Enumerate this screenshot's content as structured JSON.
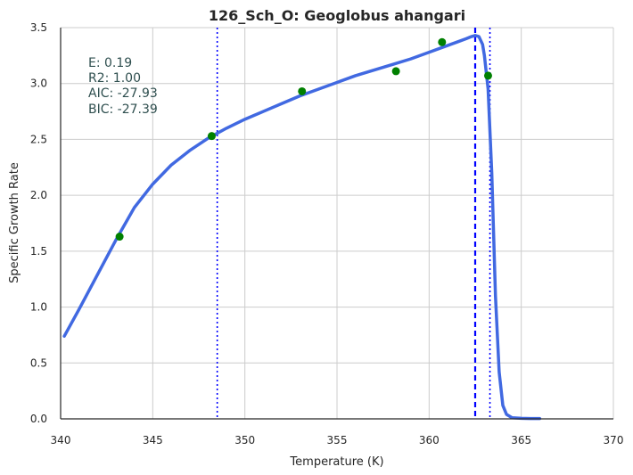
{
  "chart_data": {
    "type": "line",
    "title": "126_Sch_O: Geoglobus ahangari",
    "xlabel": "Temperature (K)",
    "ylabel": "Specific Growth Rate",
    "xlim": [
      340,
      370
    ],
    "ylim": [
      0,
      3.5
    ],
    "x_ticks": [
      340,
      345,
      350,
      355,
      360,
      365,
      370
    ],
    "y_ticks": [
      "0.0",
      "0.5",
      "1.0",
      "1.5",
      "2.0",
      "2.5",
      "3.0",
      "3.5"
    ],
    "grid": true,
    "annotations": [
      "E:  0.19",
      "R2:  1.00",
      "AIC: -27.93",
      "BIC: -27.39"
    ],
    "colors": {
      "fit_line": "#4169e1",
      "observed_points": "#008000",
      "vertical_lines": "#0000ff",
      "grid": "#cccccc",
      "annotation_text": "#2f4f4f"
    },
    "series": [
      {
        "role": "fitted-curve",
        "style": "solid",
        "x": [
          340.2,
          341.0,
          342.0,
          343.0,
          344.0,
          345.0,
          346.0,
          347.0,
          348.0,
          349.0,
          350.0,
          351.0,
          352.0,
          353.0,
          354.0,
          355.0,
          356.0,
          357.0,
          358.0,
          359.0,
          360.0,
          361.0,
          361.5,
          362.0,
          362.3,
          362.5,
          362.7,
          362.9,
          363.0,
          363.2,
          363.4,
          363.6,
          363.8,
          364.0,
          364.2,
          364.5,
          365.0,
          365.5,
          366.0
        ],
        "y": [
          0.74,
          0.98,
          1.29,
          1.6,
          1.89,
          2.1,
          2.27,
          2.4,
          2.51,
          2.6,
          2.68,
          2.75,
          2.82,
          2.89,
          2.95,
          3.01,
          3.07,
          3.12,
          3.17,
          3.22,
          3.28,
          3.34,
          3.37,
          3.4,
          3.42,
          3.43,
          3.42,
          3.35,
          3.25,
          2.95,
          2.2,
          1.1,
          0.42,
          0.12,
          0.04,
          0.01,
          0.005,
          0.003,
          0.003
        ]
      },
      {
        "role": "observed-points",
        "style": "points",
        "x": [
          343.2,
          348.2,
          353.1,
          358.2,
          360.7,
          363.2
        ],
        "y": [
          1.63,
          2.53,
          2.93,
          3.11,
          3.37,
          3.07
        ]
      }
    ],
    "vertical_lines": [
      {
        "x": 348.5,
        "style": "dotted"
      },
      {
        "x": 362.5,
        "style": "dashed"
      },
      {
        "x": 363.3,
        "style": "dotted"
      }
    ]
  }
}
